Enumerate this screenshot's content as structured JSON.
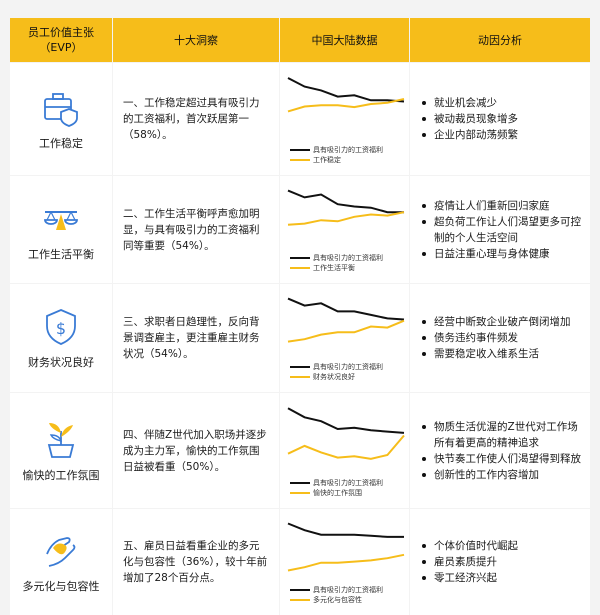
{
  "headers": {
    "evp": "员工价值主张\n（EVP）",
    "insights": "十大洞察",
    "data": "中国大陆数据",
    "drivers": "动因分析"
  },
  "colors": {
    "accent": "#f6bd1a",
    "series_black": "#111111",
    "series_yellow": "#f6bd1a",
    "icon_blue": "#3a7bd5"
  },
  "rows": [
    {
      "evp": "工作稳定",
      "icon": "briefcase-shield-icon",
      "insight": "一、工作稳定超过具有吸引力的工资福利，首次跃居第一（58%）。",
      "drivers": [
        "就业机会减少",
        "被动裁员现象增多",
        "企业内部动荡频繁"
      ],
      "chart_data": {
        "type": "line",
        "series": [
          {
            "name": "具有吸引力的工资福利",
            "values": [
              92,
              78,
              72,
              62,
              64,
              56,
              56,
              54
            ]
          },
          {
            "name": "工作稳定",
            "values": [
              38,
              46,
              48,
              48,
              45,
              50,
              52,
              58
            ]
          }
        ]
      }
    },
    {
      "evp": "工作生活平衡",
      "icon": "balance-scale-icon",
      "insight": "二、工作生活平衡呼声愈加明显，与具有吸引力的工资福利同等重要（54%）。",
      "drivers": [
        "疫情让人们重新回归家庭",
        "超负荷工作让人们渴望更多可控制的个人生活空间",
        "日益注重心理与身体健康"
      ],
      "chart_data": {
        "type": "line",
        "series": [
          {
            "name": "具有吸引力的工资福利",
            "values": [
              92,
              80,
              85,
              68,
              64,
              62,
              54,
              54
            ]
          },
          {
            "name": "工作生活平衡",
            "values": [
              32,
              34,
              40,
              38,
              46,
              50,
              48,
              54
            ]
          }
        ]
      }
    },
    {
      "evp": "财务状况良好",
      "icon": "dollar-shield-icon",
      "insight": "三、求职者日趋理性，反向背景调查雇主，更注重雇主财务状况（54%）。",
      "drivers": [
        "经营中断致企业破产倒闭增加",
        "债务违约事件频发",
        "需要稳定收入维系生活"
      ],
      "chart_data": {
        "type": "line",
        "series": [
          {
            "name": "具有吸引力的工资福利",
            "values": [
              92,
              80,
              84,
              70,
              70,
              64,
              58,
              56
            ]
          },
          {
            "name": "财务状况良好",
            "values": [
              18,
              22,
              30,
              34,
              34,
              44,
              42,
              54
            ]
          }
        ]
      }
    },
    {
      "evp": "愉快的工作氛围",
      "icon": "plant-growth-icon",
      "insight": "四、伴随Z世代加入职场并逐步成为主力军，愉快的工作氛围日益被看重（50%）。",
      "drivers": [
        "物质生活优渥的Z世代对工作场所有着更高的精神追求",
        "快节奏工作使人们渴望得到释放",
        "创新性的工作内容增加"
      ],
      "chart_data": {
        "type": "line",
        "series": [
          {
            "name": "具有吸引力的工资福利",
            "values": [
              92,
              78,
              72,
              60,
              62,
              58,
              56,
              54
            ]
          },
          {
            "name": "愉快的工作氛围",
            "values": [
              22,
              34,
              24,
              16,
              18,
              14,
              20,
              50
            ]
          }
        ]
      }
    },
    {
      "evp": "多元化与包容性",
      "icon": "helping-hand-icon",
      "insight": "五、雇员日益看重企业的多元化与包容性（36%），较十年前增加了28个百分点。",
      "drivers": [
        "个体价值时代崛起",
        "雇员素质提升",
        "零工经济兴起"
      ],
      "chart_data": {
        "type": "line",
        "series": [
          {
            "name": "具有吸引力的工资福利",
            "values": [
              92,
              80,
              72,
              72,
              72,
              70,
              68,
              68
            ]
          },
          {
            "name": "多元化与包容性",
            "values": [
              8,
              14,
              22,
              22,
              24,
              26,
              30,
              36
            ]
          }
        ]
      }
    }
  ]
}
